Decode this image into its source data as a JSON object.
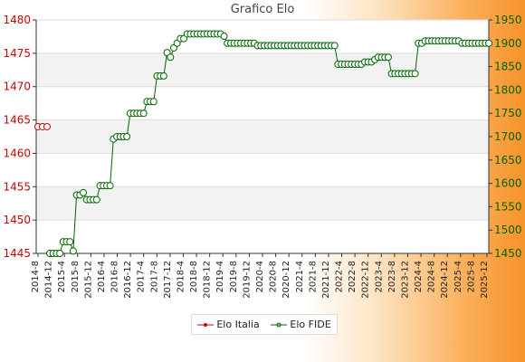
{
  "chart_data": {
    "type": "line",
    "title": "Grafico Elo",
    "xlabel": "",
    "ylabel_left": "",
    "ylabel_right": "",
    "left_axis": {
      "ylim": [
        1445,
        1480
      ],
      "ticks": [
        1445,
        1450,
        1455,
        1460,
        1465,
        1470,
        1475,
        1480
      ],
      "color": "#cc0000"
    },
    "right_axis": {
      "ylim": [
        1450,
        1950
      ],
      "ticks": [
        1450,
        1500,
        1550,
        1600,
        1650,
        1700,
        1750,
        1800,
        1850,
        1900,
        1950
      ],
      "color": "#006600"
    },
    "grid": true,
    "legend_position": "bottom-center",
    "x_tick_labels": [
      "2014-8",
      "2014-12",
      "2015-4",
      "2015-8",
      "2015-12",
      "2016-4",
      "2016-8",
      "2016-12",
      "2017-4",
      "2017-8",
      "2017-12",
      "2018-4",
      "2018-8",
      "2018-12",
      "2019-4",
      "2019-8",
      "2019-12",
      "2020-4",
      "2020-8",
      "2020-12",
      "2021-4",
      "2021-8",
      "2021-12",
      "2022-4",
      "2022-8",
      "2022-12",
      "2023-4",
      "2023-8",
      "2023-12",
      "2024-4",
      "2024-8",
      "2024-12",
      "2025-4",
      "2025-8",
      "2025-12"
    ],
    "series": [
      {
        "name": "Elo Italia",
        "axis": "left",
        "color": "#cc0000",
        "values": [
          1464,
          1464,
          1464
        ]
      },
      {
        "name": "Elo FIDE",
        "axis": "right",
        "color": "#006600",
        "values": [
          1450,
          1450,
          1450,
          1450,
          1475,
          1475,
          1475,
          1455,
          1575,
          1575,
          1580,
          1565,
          1565,
          1565,
          1565,
          1595,
          1595,
          1595,
          1595,
          1695,
          1700,
          1700,
          1700,
          1700,
          1750,
          1750,
          1750,
          1750,
          1750,
          1775,
          1775,
          1775,
          1830,
          1830,
          1830,
          1880,
          1870,
          1890,
          1900,
          1910,
          1910,
          1920,
          1920,
          1920,
          1920,
          1920,
          1920,
          1920,
          1920,
          1920,
          1920,
          1920,
          1915,
          1900,
          1900,
          1900,
          1900,
          1900,
          1900,
          1900,
          1900,
          1900,
          1895,
          1895,
          1895,
          1895,
          1895,
          1895,
          1895,
          1895,
          1895,
          1895,
          1895,
          1895,
          1895,
          1895,
          1895,
          1895,
          1895,
          1895,
          1895,
          1895,
          1895,
          1895,
          1895,
          1895,
          1855,
          1855,
          1855,
          1855,
          1855,
          1855,
          1855,
          1855,
          1860,
          1860,
          1860,
          1865,
          1870,
          1870,
          1870,
          1870,
          1835,
          1835,
          1835,
          1835,
          1835,
          1835,
          1835,
          1835,
          1900,
          1900,
          1905,
          1905,
          1905,
          1905,
          1905,
          1905,
          1905,
          1905,
          1905,
          1905,
          1905,
          1900,
          1900,
          1900,
          1900,
          1900,
          1900,
          1900,
          1900,
          1900
        ]
      }
    ]
  }
}
